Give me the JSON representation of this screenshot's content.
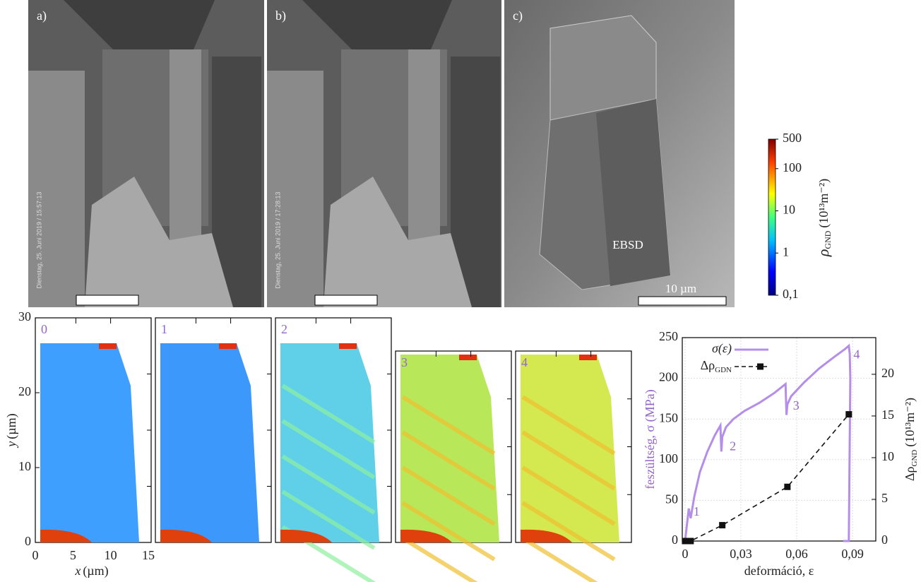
{
  "images": [
    {
      "label": "a)",
      "timestamp": "Dienstag, 25. Juni 2019 / 15:57:13"
    },
    {
      "label": "b)",
      "timestamp": "Dienstag, 25. Juni 2019 / 17:28:13"
    },
    {
      "label": "c)",
      "annotation": "EBSD",
      "scale_bar": "10 µm"
    }
  ],
  "colorbar": {
    "symbol": "ρ",
    "subscript": "GND",
    "unit": "(10¹³m⁻²)",
    "log_scale": true,
    "lim": [
      0.1,
      500
    ],
    "ticks": [
      500,
      100,
      10,
      1,
      {
        "value": 0.1,
        "label": "0,1"
      }
    ]
  },
  "maps": {
    "panels": [
      "0",
      "1",
      "2",
      "3",
      "4"
    ],
    "xlabel_symbol": "x",
    "xlabel_unit": "(µm)",
    "ylabel_symbol": "y",
    "ylabel_unit": "(µm)",
    "xlim": [
      0,
      15
    ],
    "xticks": [
      0,
      5,
      10,
      15
    ],
    "ylim": [
      0,
      30
    ],
    "yticks": [
      0,
      10,
      20,
      30
    ]
  },
  "chart_data": {
    "type": "line",
    "xlabel": "deformáció, ε",
    "ylabel": "feszültség, σ (MPa)",
    "y2label_symbol": "Δρ",
    "y2label_subscript": "GND",
    "y2label_unit": "(10¹³m⁻²)",
    "annotations": [
      "1",
      "2",
      "3",
      "4"
    ],
    "xlim": [
      -0.0015,
      0.1025
    ],
    "xticks": [
      0,
      {
        "value": 0.03,
        "label": "0,03"
      },
      {
        "value": 0.06,
        "label": "0,06"
      },
      {
        "value": 0.09,
        "label": "0,09"
      }
    ],
    "ylim": [
      0,
      250
    ],
    "yticks": [
      0,
      50,
      100,
      150,
      200,
      250
    ],
    "y2lim": [
      0,
      24.4
    ],
    "y2ticks": [
      0,
      5,
      10,
      15,
      20
    ],
    "grid": true,
    "legend": "top-left",
    "series": [
      {
        "name": "σ(ε)",
        "color": "#b48ee8",
        "x": [
          0,
          0.002,
          0.003,
          0.005,
          0.008,
          0.012,
          0.016,
          0.019,
          0.0195,
          0.02,
          0.022,
          0.026,
          0.032,
          0.04,
          0.048,
          0.054,
          0.0545,
          0.055,
          0.057,
          0.064,
          0.072,
          0.08,
          0.086,
          0.088,
          0.0885,
          0.0888,
          0.088,
          0.086,
          0.085
        ],
        "values": [
          0,
          40,
          28,
          55,
          85,
          110,
          130,
          142,
          110,
          128,
          140,
          150,
          160,
          170,
          182,
          193,
          155,
          168,
          178,
          195,
          212,
          226,
          236,
          240,
          230,
          200,
          0,
          0,
          0
        ]
      },
      {
        "name": "Δρ",
        "name_subscript": "GDN",
        "color": "#111111",
        "axis": "y2",
        "x": [
          0,
          0.003,
          0.02,
          0.055,
          0.088
        ],
        "values": [
          0,
          0,
          1.9,
          6.5,
          15.2
        ]
      }
    ]
  }
}
